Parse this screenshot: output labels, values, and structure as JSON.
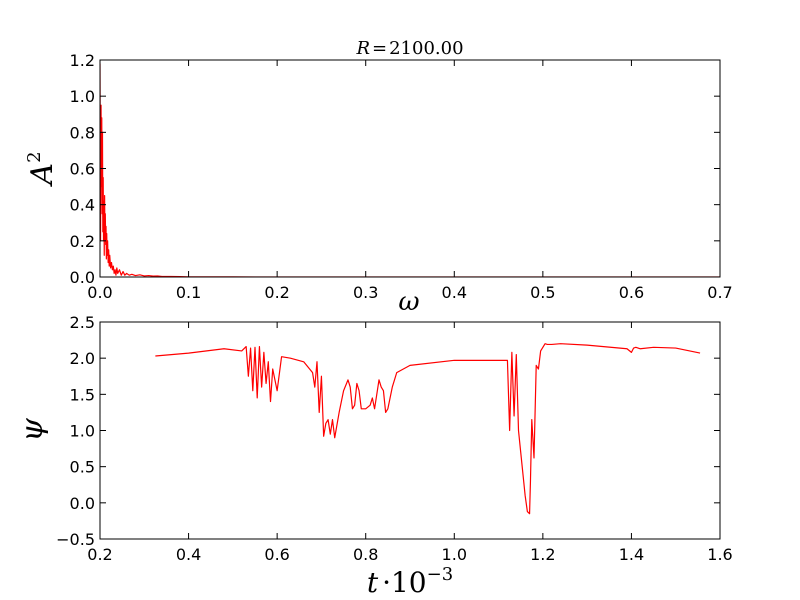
{
  "chart_data": [
    {
      "type": "line",
      "title": "R = 2100.00",
      "title_parts": {
        "var": "R",
        "value": "2100.00"
      },
      "xlabel": "ω",
      "ylabel": "A²",
      "ylabel_parts": {
        "base": "A",
        "exp": "2"
      },
      "xlim": [
        0.0,
        0.7
      ],
      "ylim": [
        0.0,
        1.2
      ],
      "grid": false,
      "xticks": [
        "0.0",
        "0.1",
        "0.2",
        "0.3",
        "0.4",
        "0.5",
        "0.6",
        "0.7"
      ],
      "yticks": [
        "0.0",
        "0.2",
        "0.4",
        "0.6",
        "0.8",
        "1.0",
        "1.2"
      ],
      "color": "#ff0000",
      "series": [
        {
          "x": [
            0.0,
            0.0006,
            0.0012,
            0.0016,
            0.002,
            0.0024,
            0.0028,
            0.0032,
            0.0036,
            0.004,
            0.0044,
            0.0048,
            0.0052,
            0.0056,
            0.006,
            0.0064,
            0.0068,
            0.0072,
            0.0076,
            0.008,
            0.0086,
            0.0092,
            0.0098,
            0.0104,
            0.011,
            0.012,
            0.013,
            0.014,
            0.015,
            0.016,
            0.017,
            0.018,
            0.019,
            0.02,
            0.022,
            0.024,
            0.026,
            0.028,
            0.03,
            0.033,
            0.036,
            0.04,
            0.045,
            0.05,
            0.055,
            0.06,
            0.065,
            0.07,
            0.08,
            0.09,
            0.1,
            0.12,
            0.15,
            0.2,
            0.3,
            0.4,
            0.5,
            0.6,
            0.7
          ],
          "y": [
            1.18,
            0.2,
            0.95,
            0.5,
            0.88,
            0.35,
            0.8,
            0.25,
            0.55,
            0.2,
            0.42,
            0.12,
            0.45,
            0.2,
            0.35,
            0.18,
            0.28,
            0.1,
            0.24,
            0.12,
            0.2,
            0.08,
            0.15,
            0.06,
            0.12,
            0.05,
            0.08,
            0.04,
            0.06,
            0.02,
            0.04,
            0.01,
            0.05,
            0.02,
            0.04,
            0.01,
            0.03,
            0.01,
            0.02,
            0.01,
            0.015,
            0.008,
            0.012,
            0.006,
            0.008,
            0.005,
            0.006,
            0.003,
            0.003,
            0.002,
            0.001,
            0.001,
            0.0005,
            0.0003,
            0.0002,
            0.0001,
            0.0001,
            0.0,
            0.0
          ]
        }
      ]
    },
    {
      "type": "line",
      "xlabel": "t · 10⁻³",
      "xlabel_parts": {
        "base": "t",
        "mult": "·10",
        "exp": "−3"
      },
      "ylabel": "ψ",
      "xlim": [
        0.2,
        1.6
      ],
      "ylim": [
        -0.5,
        2.5
      ],
      "grid": false,
      "xticks": [
        "0.2",
        "0.4",
        "0.6",
        "0.8",
        "1.0",
        "1.2",
        "1.4",
        "1.6"
      ],
      "yticks": [
        "−0.5",
        "0.0",
        "0.5",
        "1.0",
        "1.5",
        "2.0",
        "2.5"
      ],
      "color": "#ff0000",
      "series": [
        {
          "x": [
            0.325,
            0.4,
            0.48,
            0.52,
            0.53,
            0.535,
            0.54,
            0.545,
            0.55,
            0.555,
            0.56,
            0.565,
            0.57,
            0.575,
            0.58,
            0.585,
            0.59,
            0.6,
            0.61,
            0.63,
            0.66,
            0.68,
            0.685,
            0.69,
            0.695,
            0.7,
            0.705,
            0.71,
            0.715,
            0.72,
            0.725,
            0.73,
            0.74,
            0.75,
            0.76,
            0.765,
            0.77,
            0.775,
            0.78,
            0.785,
            0.79,
            0.8,
            0.81,
            0.815,
            0.82,
            0.83,
            0.835,
            0.84,
            0.845,
            0.85,
            0.855,
            0.86,
            0.87,
            0.9,
            1.0,
            1.1,
            1.12,
            1.125,
            1.13,
            1.135,
            1.14,
            1.145,
            1.15,
            1.155,
            1.16,
            1.165,
            1.17,
            1.172,
            1.175,
            1.18,
            1.185,
            1.19,
            1.195,
            1.2,
            1.205,
            1.21,
            1.22,
            1.24,
            1.3,
            1.39,
            1.4,
            1.405,
            1.41,
            1.42,
            1.45,
            1.5,
            1.555
          ],
          "y": [
            2.03,
            2.07,
            2.13,
            2.1,
            2.16,
            1.75,
            2.14,
            1.55,
            2.15,
            1.45,
            2.16,
            1.6,
            2.08,
            1.65,
            1.95,
            1.4,
            1.85,
            1.55,
            2.02,
            2.0,
            1.95,
            1.8,
            1.6,
            1.95,
            1.25,
            1.75,
            0.92,
            1.1,
            1.15,
            0.95,
            1.15,
            0.9,
            1.25,
            1.55,
            1.7,
            1.6,
            1.3,
            1.35,
            1.65,
            1.55,
            1.3,
            1.3,
            1.35,
            1.45,
            1.3,
            1.7,
            1.6,
            1.55,
            1.25,
            1.3,
            1.45,
            1.6,
            1.8,
            1.9,
            1.97,
            1.97,
            1.97,
            1.0,
            2.08,
            1.2,
            2.05,
            1.0,
            0.7,
            0.4,
            0.1,
            -0.12,
            -0.15,
            0.3,
            1.15,
            0.62,
            1.9,
            1.85,
            2.1,
            2.15,
            2.2,
            2.19,
            2.19,
            2.2,
            2.18,
            2.13,
            2.08,
            2.14,
            2.15,
            2.13,
            2.15,
            2.14,
            2.07
          ]
        }
      ]
    }
  ]
}
